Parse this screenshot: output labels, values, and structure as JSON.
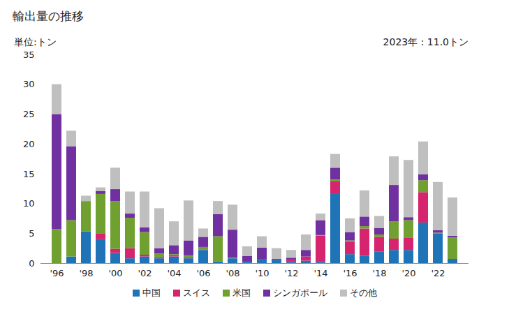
{
  "chart_data": {
    "type": "bar",
    "stacked": true,
    "title": "輸出量の推移",
    "y_label": "単位:トン",
    "annotation": "2023年 : 11.0トン",
    "categories": [
      "'96",
      null,
      "'98",
      null,
      "'00",
      null,
      "'02",
      null,
      "'04",
      null,
      "'06",
      null,
      "'08",
      null,
      "'10",
      null,
      "'12",
      null,
      "'14",
      null,
      "'16",
      null,
      "'18",
      null,
      "'20",
      null,
      "'22",
      null
    ],
    "series": [
      {
        "name": "中国",
        "color": "#1f74b8",
        "values": [
          0,
          1.1,
          5.3,
          4.0,
          1.7,
          0.8,
          1.1,
          0.8,
          1.1,
          0.8,
          2.2,
          0.3,
          0.8,
          0.2,
          0.7,
          0.5,
          0.2,
          0.4,
          0.2,
          11.7,
          1.5,
          1.2,
          1.9,
          2.2,
          2.2,
          6.8,
          5.0,
          0.7
        ]
      },
      {
        "name": "スイス",
        "color": "#d6246e",
        "values": [
          0,
          0,
          0,
          1.0,
          0.7,
          1.7,
          0.3,
          0.2,
          0.2,
          0.2,
          0.1,
          0,
          0,
          0,
          0,
          0,
          0.5,
          0.7,
          4.4,
          2.0,
          2.1,
          4.6,
          2.5,
          1.9,
          2.1,
          5.1,
          0,
          0
        ]
      },
      {
        "name": "米国",
        "color": "#70a030",
        "values": [
          5.7,
          6.1,
          5.1,
          6.6,
          8.0,
          5.1,
          3.8,
          0.6,
          0.2,
          0.3,
          0.4,
          4.2,
          0.1,
          0,
          0,
          0,
          0,
          0,
          0.1,
          0.3,
          0.2,
          0.4,
          0.4,
          2.9,
          2.9,
          2.0,
          0.1,
          3.6
        ]
      },
      {
        "name": "シンガポール",
        "color": "#7030a0",
        "values": [
          19.3,
          12.4,
          0,
          0.5,
          2.0,
          0.7,
          0.8,
          0.9,
          1.5,
          2.5,
          1.7,
          3.7,
          4.7,
          1.0,
          1.9,
          0.2,
          0.2,
          1.1,
          2.5,
          2.0,
          1.4,
          1.6,
          1.1,
          6.1,
          0.5,
          1.0,
          0.4,
          0.3
        ]
      },
      {
        "name": "その他",
        "color": "#bfbfbf",
        "values": [
          5.0,
          2.6,
          0.9,
          0.6,
          3.6,
          3.7,
          6.0,
          6.7,
          4.0,
          6.7,
          1.4,
          2.2,
          4.2,
          1.6,
          1.9,
          1.8,
          1.3,
          2.6,
          1.1,
          2.3,
          2.3,
          4.4,
          2.0,
          4.8,
          9.6,
          5.5,
          8.1,
          6.4
        ]
      }
    ],
    "ylim": [
      0,
      35
    ],
    "yticks": [
      0,
      5,
      10,
      15,
      20,
      25,
      30,
      35
    ],
    "grid": false,
    "legend": "bottom"
  }
}
